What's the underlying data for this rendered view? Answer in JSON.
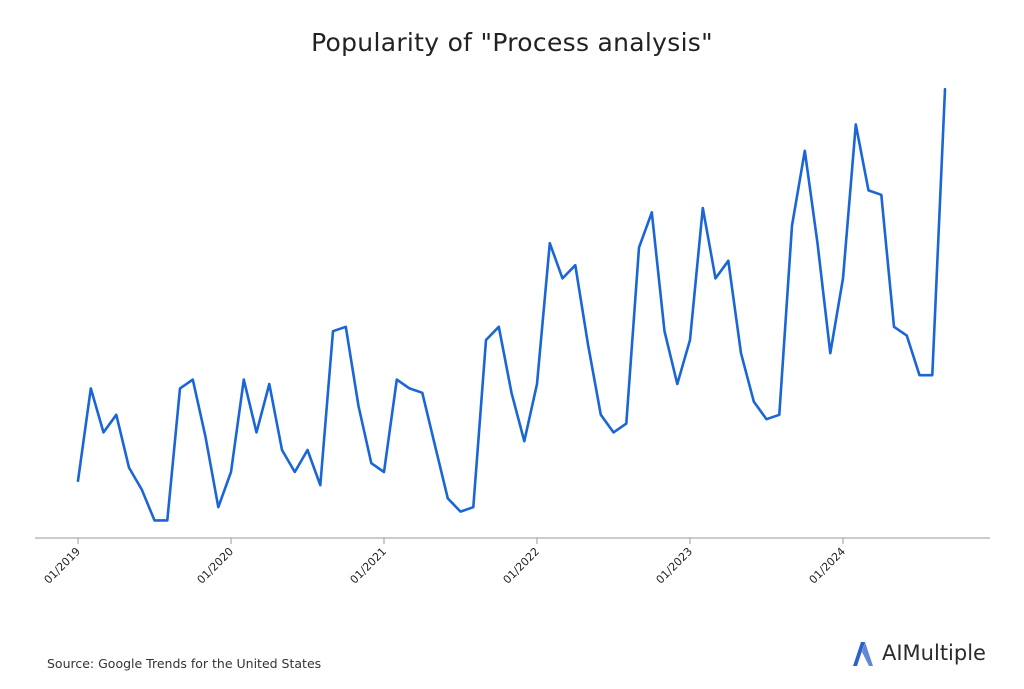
{
  "chart_data": {
    "type": "line",
    "title": "Popularity of \"Process analysis\"",
    "xlabel": "",
    "ylabel": "",
    "grid": false,
    "x_tick_labels": [
      "01/2019",
      "01/2020",
      "01/2021",
      "01/2022",
      "01/2023",
      "01/2024"
    ],
    "ylim": [
      0,
      100
    ],
    "series": [
      {
        "color": "#1a66d6",
        "x": [
          "2019-01",
          "2019-02",
          "2019-03",
          "2019-04",
          "2019-05",
          "2019-06",
          "2019-07",
          "2019-08",
          "2019-09",
          "2019-10",
          "2019-11",
          "2019-12",
          "2020-01",
          "2020-02",
          "2020-03",
          "2020-04",
          "2020-05",
          "2020-06",
          "2020-07",
          "2020-08",
          "2020-09",
          "2020-10",
          "2020-11",
          "2020-12",
          "2021-01",
          "2021-02",
          "2021-03",
          "2021-04",
          "2021-05",
          "2021-06",
          "2021-07",
          "2021-08",
          "2021-09",
          "2021-10",
          "2021-11",
          "2021-12",
          "2022-01",
          "2022-02",
          "2022-03",
          "2022-04",
          "2022-05",
          "2022-06",
          "2022-07",
          "2022-08",
          "2022-09",
          "2022-10",
          "2022-11",
          "2022-12",
          "2023-01",
          "2023-02",
          "2023-03",
          "2023-04",
          "2023-05",
          "2023-06",
          "2023-07",
          "2023-08",
          "2023-09",
          "2023-10",
          "2023-11",
          "2023-12",
          "2024-01",
          "2024-02",
          "2024-03",
          "2024-04",
          "2024-05",
          "2024-06",
          "2024-07",
          "2024-08",
          "2024-09"
        ],
        "values": [
          13,
          34,
          24,
          28,
          16,
          11,
          4,
          4,
          34,
          36,
          23,
          7,
          15,
          36,
          24,
          35,
          20,
          15,
          20,
          12,
          47,
          48,
          30,
          17,
          15,
          36,
          34,
          33,
          21,
          9,
          6,
          7,
          45,
          48,
          33,
          22,
          35,
          67,
          59,
          62,
          44,
          28,
          24,
          26,
          66,
          74,
          47,
          35,
          45,
          75,
          59,
          63,
          42,
          31,
          27,
          28,
          71,
          88,
          67,
          42,
          59,
          94,
          79,
          78,
          48,
          46,
          37,
          37,
          102
        ]
      }
    ]
  },
  "source": "Source: Google Trends for the United States",
  "brand": {
    "name": "AIMultiple",
    "logo_icon": "aimultiple-logo-icon",
    "logo_color": "#2a62c9"
  }
}
